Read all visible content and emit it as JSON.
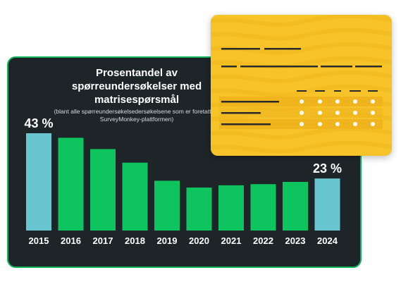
{
  "chart_data": {
    "type": "bar",
    "title": "Prosentandel av spørreundersøkelser med matrisespørsmål",
    "subtitle": "(blant alle spørreundersøkelsedersøkelsene som er foretatt på SurveyMonkey-plattformen)",
    "categories": [
      "2015",
      "2016",
      "2017",
      "2018",
      "2019",
      "2020",
      "2021",
      "2022",
      "2023",
      "2024"
    ],
    "values": [
      43,
      41,
      36,
      30,
      22,
      19,
      20,
      20.5,
      21.5,
      23
    ],
    "ylim": [
      0,
      46
    ],
    "highlight_indices": [
      0,
      9
    ],
    "value_labels": [
      {
        "index": 0,
        "text": "43 %"
      },
      {
        "index": 9,
        "text": "23 %"
      }
    ],
    "colors": {
      "bar": "#0ec45f",
      "highlight": "#67c6cf",
      "background": "#1e2528",
      "border": "#10b45a",
      "text": "#ffffff"
    }
  },
  "card": {
    "background": "#f6c428",
    "wave_color": "#f2b81a",
    "row_highlight": "#efb21e",
    "dot_color": "#ffffff",
    "line_color": "#2a2a2a",
    "rows": 3,
    "columns": 5
  }
}
